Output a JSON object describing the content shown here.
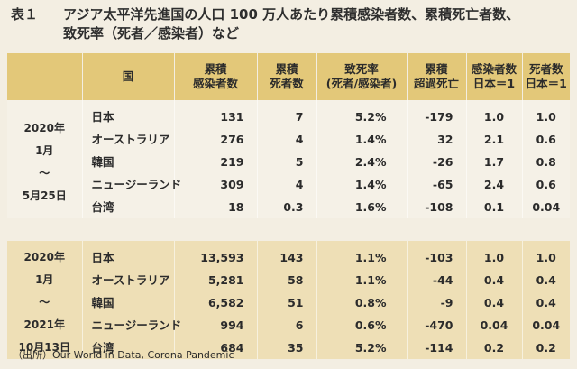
{
  "title": {
    "number": "表１",
    "line1": "アジア太平洋先進国の人口 100 万人あたり累積感染者数、累積死亡者数、",
    "line2": "致死率（死者／感染者）など"
  },
  "headers": [
    "",
    "国",
    "累積\n感染者数",
    "累積\n死者数",
    "致死率\n(死者/感染者)",
    "累積\n超過死亡",
    "感染者数\n日本＝1",
    "死者数\n日本＝1"
  ],
  "periods": [
    {
      "label": "2020年\n1月\n〜\n5月25日",
      "rows": [
        [
          "日本",
          "131",
          "7",
          "5.2%",
          "-179",
          "1.0",
          "1.0"
        ],
        [
          "オーストラリア",
          "276",
          "4",
          "1.4%",
          "32",
          "2.1",
          "0.6"
        ],
        [
          "韓国",
          "219",
          "5",
          "2.4%",
          "-26",
          "1.7",
          "0.8"
        ],
        [
          "ニュージーランド",
          "309",
          "4",
          "1.4%",
          "-65",
          "2.4",
          "0.6"
        ],
        [
          "台湾",
          "18",
          "0.3",
          "1.6%",
          "-108",
          "0.1",
          "0.04"
        ]
      ]
    },
    {
      "label": "2020年\n1月\n〜\n2021年\n10月13日",
      "rows": [
        [
          "日本",
          "13,593",
          "143",
          "1.1%",
          "-103",
          "1.0",
          "1.0"
        ],
        [
          "オーストラリア",
          "5,281",
          "58",
          "1.1%",
          "-44",
          "0.4",
          "0.4"
        ],
        [
          "韓国",
          "6,582",
          "51",
          "0.8%",
          "-9",
          "0.4",
          "0.4"
        ],
        [
          "ニュージーランド",
          "994",
          "6",
          "0.6%",
          "-470",
          "0.04",
          "0.04"
        ],
        [
          "台湾",
          "684",
          "35",
          "5.2%",
          "-114",
          "0.2",
          "0.2"
        ]
      ]
    }
  ],
  "source": "（出所）Our World in Data, Corona Pandemic"
}
